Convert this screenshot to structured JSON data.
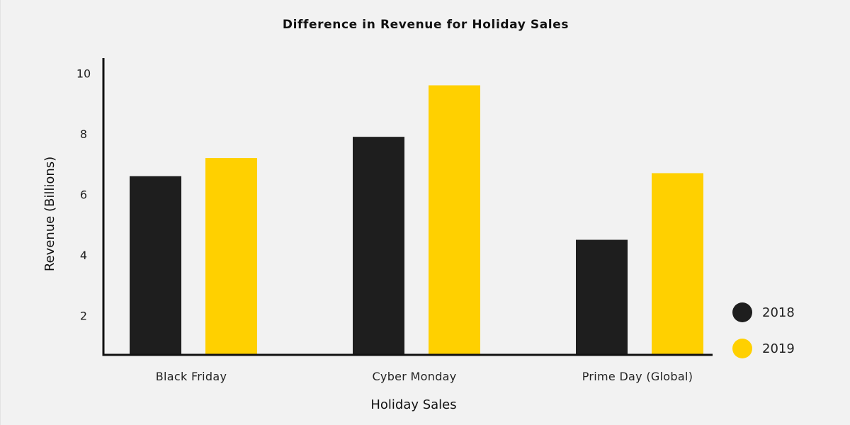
{
  "chart_data": {
    "type": "bar",
    "title": "Difference in Revenue for Holiday Sales",
    "xlabel": "Holiday Sales",
    "ylabel": "Revenue (Billions)",
    "categories": [
      "Black Friday",
      "Cyber Monday",
      "Prime Day (Global)"
    ],
    "series": [
      {
        "name": "2018",
        "values": [
          6.6,
          7.9,
          4.5
        ],
        "color": "#1e1e1e"
      },
      {
        "name": "2019",
        "values": [
          7.2,
          9.6,
          6.7
        ],
        "color": "#ffd000"
      }
    ],
    "yticks": [
      2,
      4,
      6,
      8,
      10
    ],
    "ylim": [
      0.7,
      10.5
    ],
    "grid": false,
    "legend_position": "bottom-right"
  }
}
